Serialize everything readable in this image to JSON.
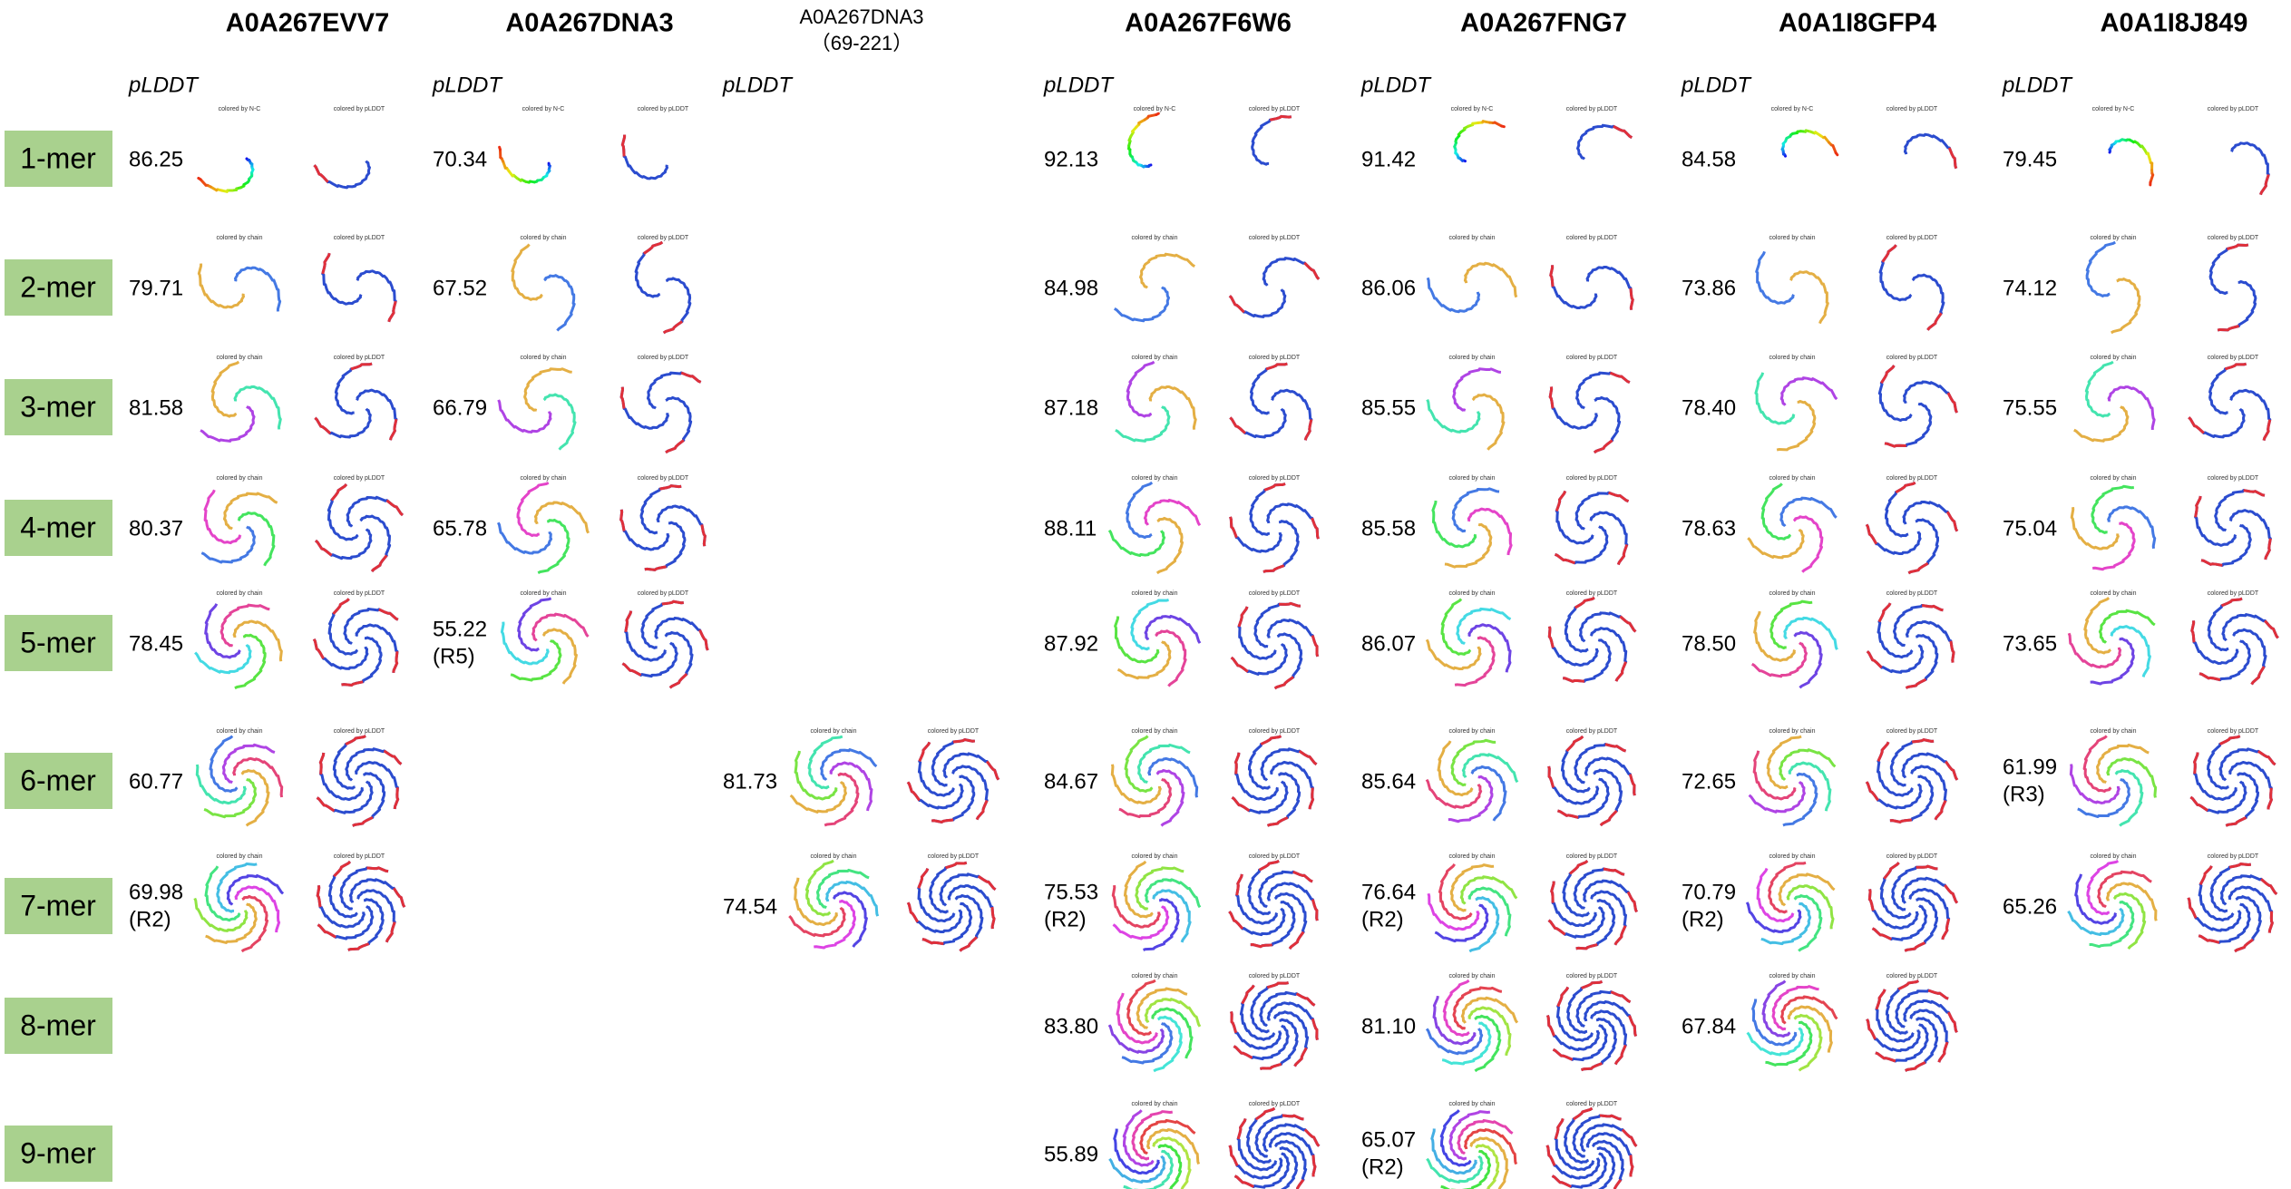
{
  "pLDDT_label": "pLDDT",
  "rows": [
    "1-mer",
    "2-mer",
    "3-mer",
    "4-mer",
    "5-mer",
    "6-mer",
    "7-mer",
    "8-mer",
    "9-mer"
  ],
  "columns": [
    {
      "title": "A0A267EVV7",
      "cells": [
        {
          "value": "86.25",
          "captions": [
            "colored by N-C",
            "colored by pLDDT"
          ]
        },
        {
          "value": "79.71",
          "captions": [
            "colored by chain",
            "colored by pLDDT"
          ]
        },
        {
          "value": "81.58",
          "captions": [
            "colored by chain",
            "colored by pLDDT"
          ]
        },
        {
          "value": "80.37",
          "captions": [
            "colored by chain",
            "colored by pLDDT"
          ]
        },
        {
          "value": "78.45",
          "captions": [
            "colored by chain",
            "colored by pLDDT"
          ]
        },
        {
          "value": "60.77",
          "captions": [
            "colored by chain",
            "colored by pLDDT"
          ]
        },
        {
          "value": "69.98",
          "note": "(R2)",
          "captions": [
            "colored by chain",
            "colored by pLDDT"
          ]
        },
        null,
        null
      ]
    },
    {
      "title": "A0A267DNA3",
      "cells": [
        {
          "value": "70.34",
          "captions": [
            "colored by N-C",
            "colored by pLDDT"
          ]
        },
        {
          "value": "67.52",
          "captions": [
            "colored by chain",
            "colored by pLDDT"
          ]
        },
        {
          "value": "66.79",
          "captions": [
            "colored by chain",
            "colored by pLDDT"
          ]
        },
        {
          "value": "65.78",
          "captions": [
            "colored by chain",
            "colored by pLDDT"
          ]
        },
        {
          "value": "55.22",
          "note": "(R5)",
          "captions": [
            "colored by chain",
            "colored by pLDDT"
          ]
        },
        null,
        null,
        null,
        null
      ]
    },
    {
      "title": "A0A267DNA3",
      "subtitle": "（69-221）",
      "cells": [
        null,
        null,
        null,
        null,
        null,
        {
          "value": "81.73",
          "captions": [
            "colored by chain",
            "colored by pLDDT"
          ]
        },
        {
          "value": "74.54",
          "captions": [
            "colored by chain",
            "colored by pLDDT"
          ]
        },
        null,
        null
      ]
    },
    {
      "title": "A0A267F6W6",
      "cells": [
        {
          "value": "92.13",
          "captions": [
            "colored by N-C",
            "colored by pLDDT"
          ]
        },
        {
          "value": "84.98",
          "captions": [
            "colored by chain",
            "colored by pLDDT"
          ]
        },
        {
          "value": "87.18",
          "captions": [
            "colored by chain",
            "colored by pLDDT"
          ]
        },
        {
          "value": "88.11",
          "captions": [
            "colored by chain",
            "colored by pLDDT"
          ]
        },
        {
          "value": "87.92",
          "captions": [
            "colored by chain",
            "colored by pLDDT"
          ]
        },
        {
          "value": "84.67",
          "captions": [
            "colored by chain",
            "colored by pLDDT"
          ]
        },
        {
          "value": "75.53",
          "note": "(R2)",
          "captions": [
            "colored by chain",
            "colored by pLDDT"
          ]
        },
        {
          "value": "83.80",
          "captions": [
            "colored by chain",
            "colored by pLDDT"
          ]
        },
        {
          "value": "55.89",
          "captions": [
            "colored by chain",
            "colored by pLDDT"
          ]
        }
      ]
    },
    {
      "title": "A0A267FNG7",
      "cells": [
        {
          "value": "91.42",
          "captions": [
            "colored by N-C",
            "colored by pLDDT"
          ]
        },
        {
          "value": "86.06",
          "captions": [
            "colored by chain",
            "colored by pLDDT"
          ]
        },
        {
          "value": "85.55",
          "captions": [
            "colored by chain",
            "colored by pLDDT"
          ]
        },
        {
          "value": "85.58",
          "captions": [
            "colored by chain",
            "colored by pLDDT"
          ]
        },
        {
          "value": "86.07",
          "captions": [
            "colored by chain",
            "colored by pLDDT"
          ]
        },
        {
          "value": "85.64",
          "captions": [
            "colored by chain",
            "colored by pLDDT"
          ]
        },
        {
          "value": "76.64",
          "note": "(R2)",
          "captions": [
            "colored by chain",
            "colored by pLDDT"
          ]
        },
        {
          "value": "81.10",
          "captions": [
            "colored by chain",
            "colored by pLDDT"
          ]
        },
        {
          "value": "65.07",
          "note": "(R2)",
          "captions": [
            "colored by chain",
            "colored by pLDDT"
          ]
        }
      ]
    },
    {
      "title": "A0A1I8GFP4",
      "cells": [
        {
          "value": "84.58",
          "captions": [
            "colored by N-C",
            "colored by pLDDT"
          ]
        },
        {
          "value": "73.86",
          "captions": [
            "colored by chain",
            "colored by pLDDT"
          ]
        },
        {
          "value": "78.40",
          "captions": [
            "colored by chain",
            "colored by pLDDT"
          ]
        },
        {
          "value": "78.63",
          "captions": [
            "colored by chain",
            "colored by pLDDT"
          ]
        },
        {
          "value": "78.50",
          "captions": [
            "colored by chain",
            "colored by pLDDT"
          ]
        },
        {
          "value": "72.65",
          "captions": [
            "colored by chain",
            "colored by pLDDT"
          ]
        },
        {
          "value": "70.79",
          "note": "(R2)",
          "captions": [
            "colored by chain",
            "colored by pLDDT"
          ]
        },
        {
          "value": "67.84",
          "captions": [
            "colored by chain",
            "colored by pLDDT"
          ]
        },
        null
      ]
    },
    {
      "title": "A0A1I8J849",
      "cells": [
        {
          "value": "79.45",
          "captions": [
            "colored by N-C",
            "colored by pLDDT"
          ]
        },
        {
          "value": "74.12",
          "captions": [
            "colored by chain",
            "colored by pLDDT"
          ]
        },
        {
          "value": "75.55",
          "captions": [
            "colored by chain",
            "colored by pLDDT"
          ]
        },
        {
          "value": "75.04",
          "captions": [
            "colored by chain",
            "colored by pLDDT"
          ]
        },
        {
          "value": "73.65",
          "captions": [
            "colored by chain",
            "colored by pLDDT"
          ]
        },
        {
          "value": "61.99",
          "note": "(R3)",
          "captions": [
            "colored by chain",
            "colored by pLDDT"
          ]
        },
        {
          "value": "65.26",
          "captions": [
            "colored by chain",
            "colored by pLDDT"
          ]
        },
        null,
        null
      ]
    }
  ]
}
